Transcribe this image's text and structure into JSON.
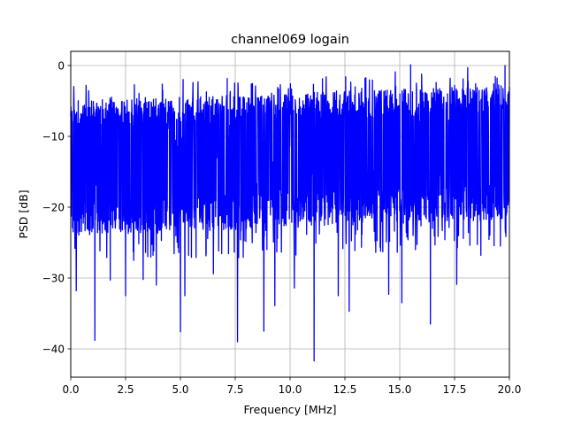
{
  "chart_data": {
    "type": "line",
    "title": "channel069 logain",
    "xlabel": "Frequency [MHz]",
    "ylabel": "PSD [dB]",
    "xlim": [
      0,
      20
    ],
    "ylim": [
      -44,
      2
    ],
    "xticks": [
      0,
      2.5,
      5,
      7.5,
      10,
      12.5,
      15,
      17.5,
      20
    ],
    "xtick_labels": [
      "0.0",
      "2.5",
      "5.0",
      "7.5",
      "10.0",
      "12.5",
      "15.0",
      "17.5",
      "20.0"
    ],
    "yticks": [
      -40,
      -30,
      -20,
      -10,
      0
    ],
    "ytick_labels": [
      "−40",
      "−30",
      "−20",
      "−10",
      "0"
    ],
    "grid": true,
    "legend": "none",
    "line_color": "#0000ff",
    "series": [
      {
        "n_points": 2000,
        "x_range": [
          0,
          20
        ],
        "noise_floor_db": -13,
        "band_top_db": -5,
        "band_bottom_db": -24,
        "peak_db": 0,
        "notches": [
          {
            "x": 0.25,
            "y": -31.8
          },
          {
            "x": 1.1,
            "y": -38.8
          },
          {
            "x": 1.8,
            "y": -30.3
          },
          {
            "x": 2.5,
            "y": -32.5
          },
          {
            "x": 3.3,
            "y": -30.2
          },
          {
            "x": 3.9,
            "y": -31.0
          },
          {
            "x": 5.0,
            "y": -37.6
          },
          {
            "x": 5.2,
            "y": -32.5
          },
          {
            "x": 6.5,
            "y": -29.4
          },
          {
            "x": 7.6,
            "y": -39.0
          },
          {
            "x": 8.8,
            "y": -37.5
          },
          {
            "x": 9.3,
            "y": -33.9
          },
          {
            "x": 10.2,
            "y": -31.4
          },
          {
            "x": 11.1,
            "y": -41.7
          },
          {
            "x": 12.2,
            "y": -32.5
          },
          {
            "x": 12.7,
            "y": -34.7
          },
          {
            "x": 14.5,
            "y": -32.3
          },
          {
            "x": 15.1,
            "y": -33.5
          },
          {
            "x": 16.4,
            "y": -36.5
          },
          {
            "x": 17.6,
            "y": -30.9
          },
          {
            "x": 18.7,
            "y": -26.8
          }
        ],
        "peaks": [
          {
            "x": 0.7,
            "y": -2.8
          },
          {
            "x": 2.9,
            "y": -2.7
          },
          {
            "x": 5.8,
            "y": -2.3
          },
          {
            "x": 14.8,
            "y": -0.9
          },
          {
            "x": 15.5,
            "y": 0.1
          },
          {
            "x": 16.0,
            "y": -1.2
          },
          {
            "x": 17.3,
            "y": -1.8
          },
          {
            "x": 18.1,
            "y": -0.3
          },
          {
            "x": 19.8,
            "y": 0.0
          }
        ]
      }
    ]
  }
}
